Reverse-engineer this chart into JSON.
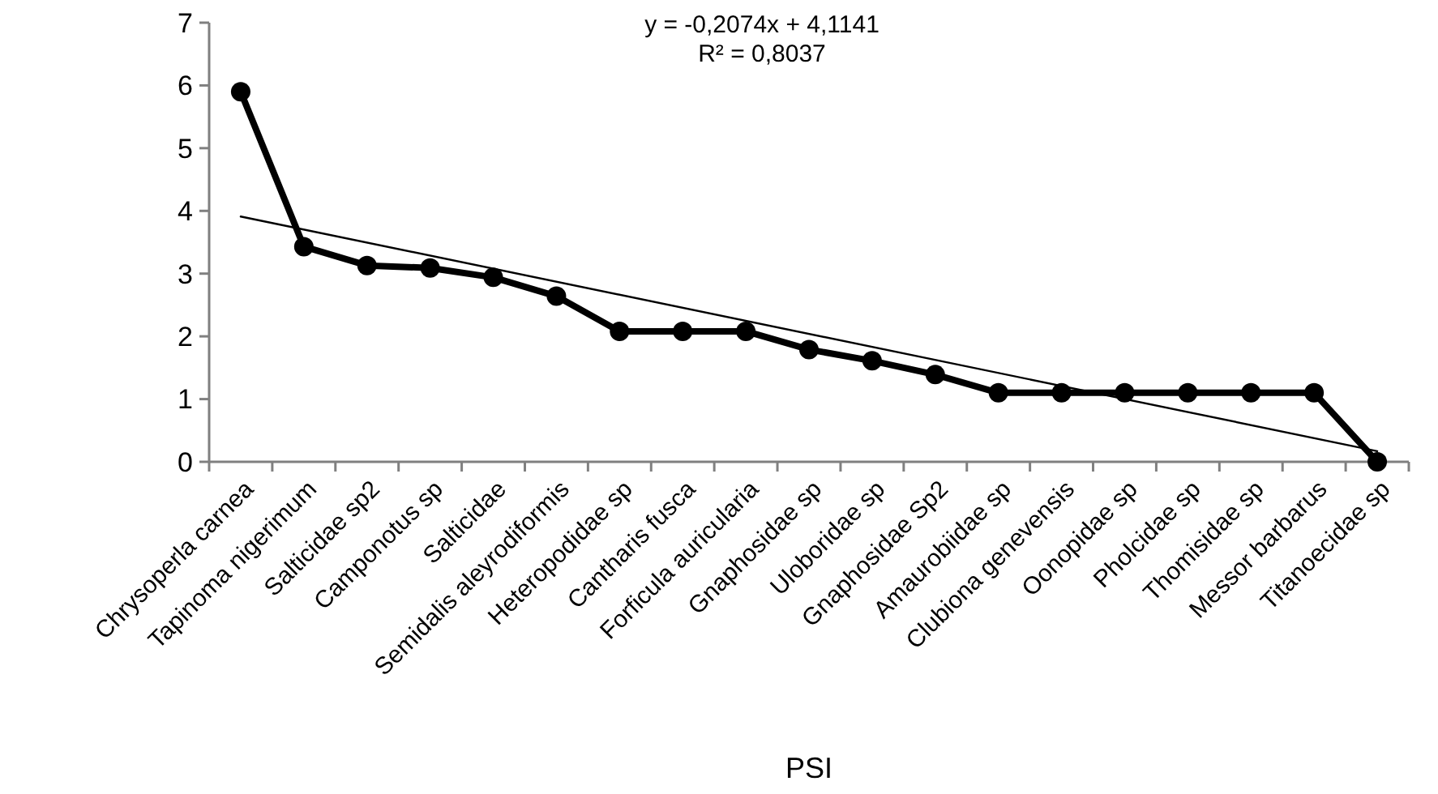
{
  "chart_data": {
    "type": "line",
    "xlabel": "PSI",
    "categories": [
      "Chrysoperla carnea",
      "Tapinoma nigerimum",
      "Salticidae sp2",
      "Camponotus sp",
      "Salticidae",
      "Semidalis aleyrodiformis",
      "Heteropodidae sp",
      "Cantharis fusca",
      "Forficula auricularia",
      "Gnaphosidae sp",
      "Uloboridae sp",
      "Gnaphosidae Sp2",
      "Amaurobiidae sp",
      "Clubiona genevensis",
      "Oonopidae sp",
      "Pholcidae sp",
      "Thomisidae sp",
      "Messor barbarus",
      "Titanoecidae sp"
    ],
    "series": [
      {
        "color": "#000000",
        "values": [
          5.9,
          3.43,
          3.13,
          3.09,
          2.94,
          2.64,
          2.08,
          2.08,
          2.08,
          1.79,
          1.61,
          1.39,
          1.1,
          1.1,
          1.1,
          1.1,
          1.1,
          1.1,
          0
        ]
      },
      {
        "type": "line",
        "color": "#000000",
        "marker": "none",
        "x": [
          "Chrysoperla carnea",
          "Titanoecidae sp"
        ],
        "values": [
          3.91,
          0.17
        ]
      }
    ],
    "marker": "circle",
    "line_style": "solid",
    "grid": false,
    "ylim": [
      0,
      7
    ],
    "yticks": [
      0,
      1,
      2,
      3,
      4,
      5,
      6,
      7
    ],
    "annotations": [
      "y = -0,2074x + 4,1141",
      "R² = 0,8037"
    ]
  }
}
